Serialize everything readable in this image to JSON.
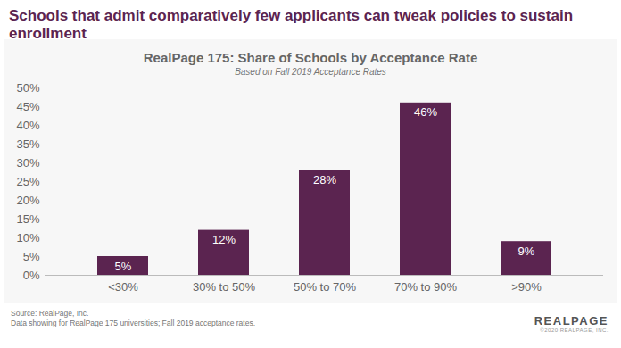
{
  "chart_data": {
    "type": "bar",
    "headline": "Schools that admit comparatively few applicants can tweak policies to sustain enrollment",
    "title": "RealPage 175: Share of Schools by Acceptance Rate",
    "subtitle": "Based on Fall 2019 Acceptance Rates",
    "categories": [
      "<30%",
      "30% to 50%",
      "50% to 70%",
      "70% to 90%",
      ">90%"
    ],
    "values": [
      5,
      12,
      28,
      46,
      9
    ],
    "value_labels": [
      "5%",
      "12%",
      "28%",
      "46%",
      "9%"
    ],
    "data_labels": true,
    "color": "#5b2450",
    "ylim": [
      0,
      50
    ],
    "yticks": [
      {
        "value": 0,
        "label": "0%"
      },
      {
        "value": 5,
        "label": "5%"
      },
      {
        "value": 10,
        "label": "10%"
      },
      {
        "value": 15,
        "label": "15%"
      },
      {
        "value": 20,
        "label": "20%"
      },
      {
        "value": 25,
        "label": "25%"
      },
      {
        "value": 30,
        "label": "30%"
      },
      {
        "value": 35,
        "label": "35%"
      },
      {
        "value": 40,
        "label": "40%"
      },
      {
        "value": 45,
        "label": "45%"
      },
      {
        "value": 50,
        "label": "50%"
      }
    ],
    "grid": false,
    "source": "Source: RealPage, Inc.",
    "note": "Data showing for RealPage 175 universities; Fall 2019 acceptance rates.",
    "logo": "REALPAGE",
    "logo_note": "©2020 REALPAGE, INC."
  }
}
